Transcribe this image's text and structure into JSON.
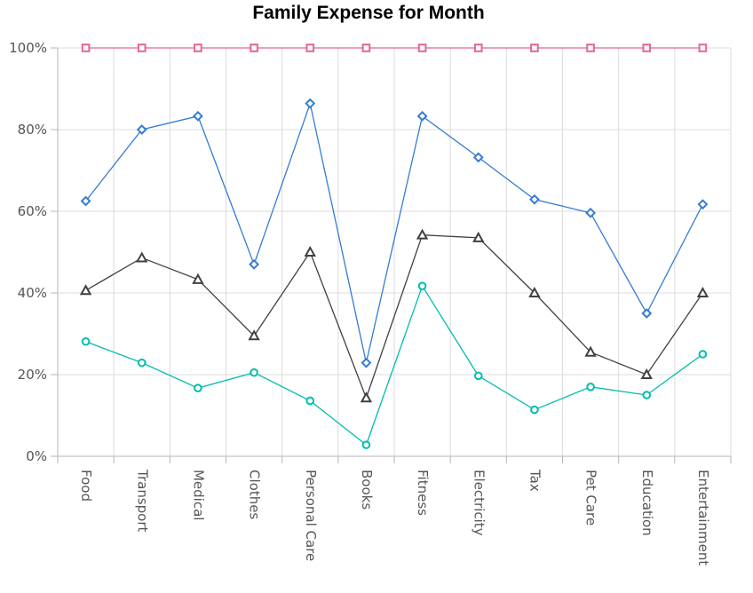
{
  "chart_data": {
    "type": "line",
    "title": "Family Expense for Month",
    "categories": [
      "Food",
      "Transport",
      "Medical",
      "Clothes",
      "Personal Care",
      "Books",
      "Fitness",
      "Electricity",
      "Tax",
      "Pet Care",
      "Education",
      "Entertainment"
    ],
    "y_tick_labels": [
      "0%",
      "20%",
      "40%",
      "60%",
      "80%",
      "100%"
    ],
    "ylim": [
      0,
      100
    ],
    "grid": true,
    "series": [
      {
        "color": "#00bdae",
        "marker": "circle",
        "values": [
          28.1,
          22.9,
          16.7,
          20.5,
          13.6,
          2.8,
          41.7,
          19.7,
          11.4,
          17.0,
          15.0,
          25.0
        ]
      },
      {
        "color": "#404041",
        "marker": "triangle",
        "values": [
          40.6,
          48.6,
          43.3,
          29.5,
          50.0,
          14.3,
          54.2,
          53.5,
          40.0,
          25.5,
          20.0,
          40.0
        ]
      },
      {
        "color": "#357cd2",
        "marker": "diamond",
        "values": [
          62.5,
          80.0,
          83.3,
          47.0,
          86.4,
          22.9,
          83.3,
          73.2,
          62.9,
          59.6,
          35.0,
          61.7
        ]
      },
      {
        "color": "#e56590",
        "marker": "square",
        "values": [
          100,
          100,
          100,
          100,
          100,
          100,
          100,
          100,
          100,
          100,
          100,
          100
        ]
      }
    ]
  }
}
